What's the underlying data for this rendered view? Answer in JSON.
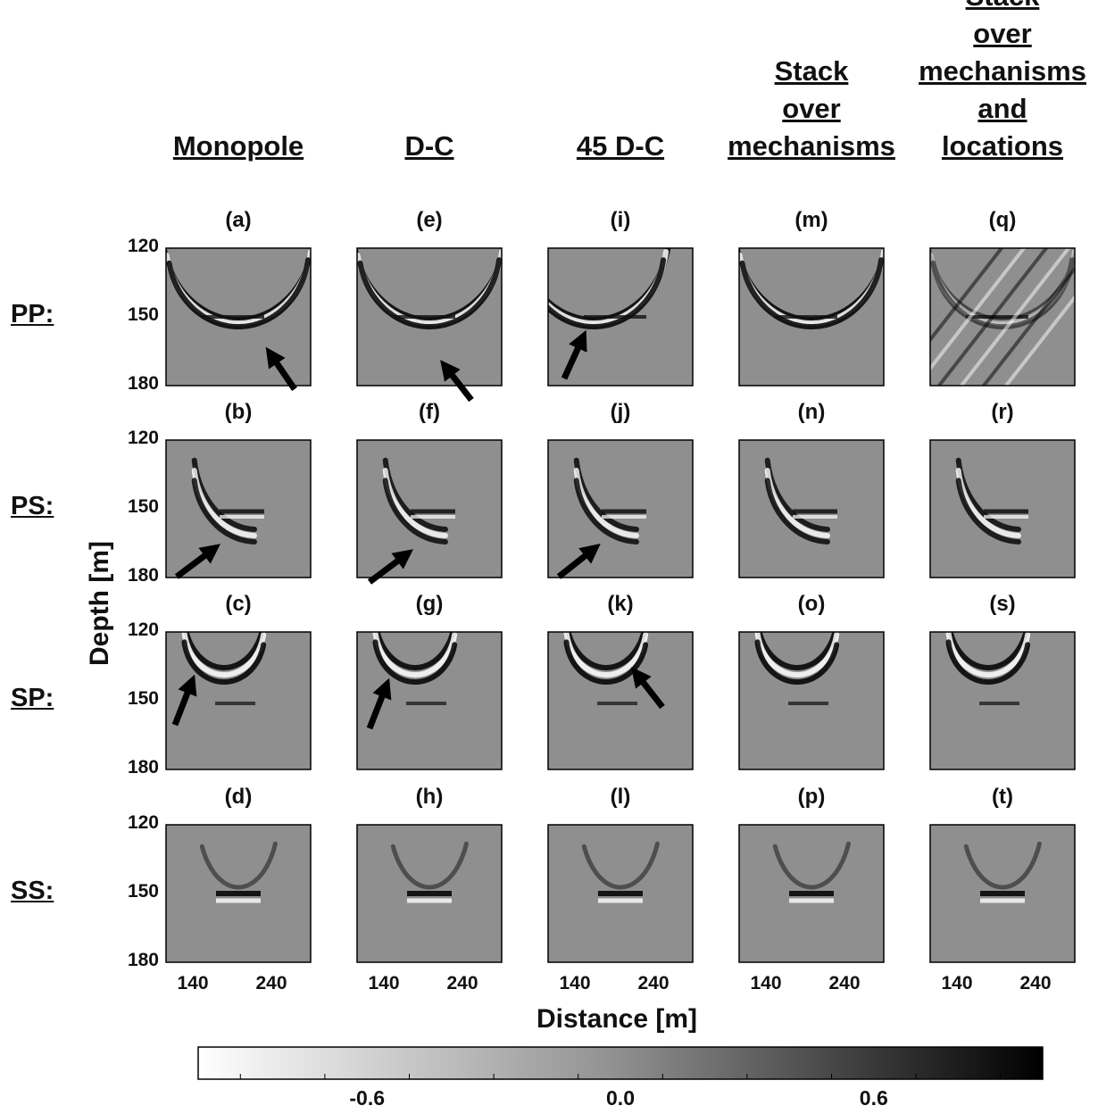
{
  "columns": [
    {
      "id": "monopole",
      "lines": [
        "Monopole"
      ]
    },
    {
      "id": "dc",
      "lines": [
        "D-C"
      ]
    },
    {
      "id": "45dc",
      "lines": [
        "45 D-C"
      ]
    },
    {
      "id": "stack-mech",
      "lines": [
        "Stack",
        "over",
        "mechanisms"
      ]
    },
    {
      "id": "stack-mech-loc",
      "lines": [
        "Stack",
        "over",
        "mechanisms",
        "and ",
        "locations"
      ]
    }
  ],
  "rows": [
    {
      "id": "pp",
      "label": "PP:"
    },
    {
      "id": "ps",
      "label": "PS:"
    },
    {
      "id": "sp",
      "label": "SP:"
    },
    {
      "id": "ss",
      "label": "SS:"
    }
  ],
  "panel_labels": [
    [
      "(a)",
      "(e)",
      "(i)",
      "(m)",
      "(q)"
    ],
    [
      "(b)",
      "(f)",
      "(j)",
      "(n)",
      "(r)"
    ],
    [
      "(c)",
      "(g)",
      "(k)",
      "(o)",
      "(s)"
    ],
    [
      "(d)",
      "(h)",
      "(l)",
      "(p)",
      "(t)"
    ]
  ],
  "y_ticks": [
    "120",
    "150",
    "180"
  ],
  "x_ticks": [
    "140",
    "240"
  ],
  "y_axis_label": "Depth [m]",
  "x_axis_label": "Distance [m]",
  "colorbar": {
    "ticks": [
      {
        "label": "-0.6",
        "value": -0.6
      },
      {
        "label": "0.0",
        "value": 0.0
      },
      {
        "label": "0.6",
        "value": 0.6
      }
    ],
    "range": [
      -1,
      1
    ],
    "colormap": "white-to-black"
  },
  "arrows_present": [
    [
      true,
      true,
      true,
      false,
      false
    ],
    [
      true,
      true,
      true,
      false,
      false
    ],
    [
      true,
      true,
      true,
      false,
      false
    ],
    [
      false,
      false,
      false,
      false,
      false
    ]
  ],
  "colors": {
    "panel_background": "#8f8f8f",
    "arrow": "#000000"
  }
}
